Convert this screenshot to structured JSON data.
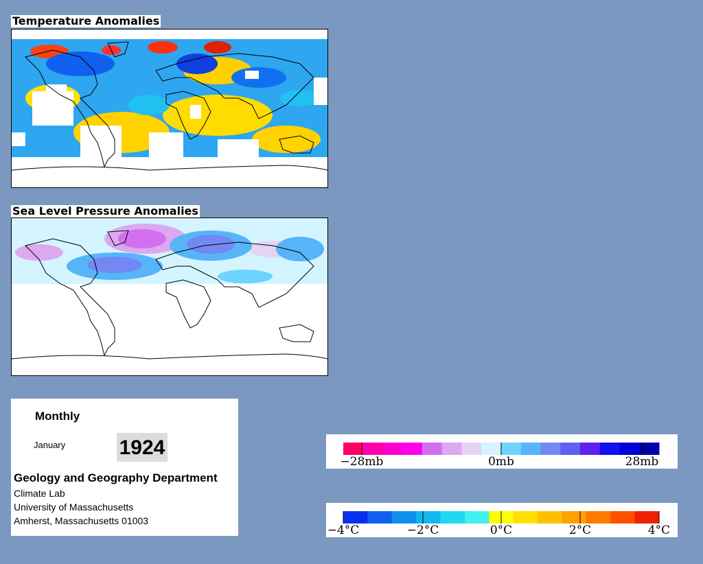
{
  "temperature_panel": {
    "title": "Temperature Anomalies"
  },
  "pressure_panel": {
    "title": "Sea Level Pressure Anomalies"
  },
  "info": {
    "period": "Monthly",
    "month": "January",
    "year": "1924",
    "department": "Geology and Geography Department",
    "address_lines": [
      "Climate Lab",
      "University of Massachusetts",
      "Amherst, Massachusetts 01003"
    ]
  },
  "pressure_legend": {
    "colors": [
      "#ff0066",
      "#ff00aa",
      "#ff00d0",
      "#ff00ee",
      "#d070f0",
      "#dca8f0",
      "#e4d4f4",
      "#d4f4ff",
      "#6cd4ff",
      "#58b4f8",
      "#7488f4",
      "#6060f0",
      "#6020f0",
      "#1010f0",
      "#0000d8",
      "#0000a8"
    ],
    "labels": [
      "−28mb",
      "0mb",
      "28mb"
    ]
  },
  "temperature_legend": {
    "colors": [
      "#0830f0",
      "#1060f0",
      "#1090f0",
      "#10b8f0",
      "#20d8f0",
      "#40f0f0",
      "#ffff00",
      "#ffe000",
      "#ffc000",
      "#ffa000",
      "#ff7800",
      "#ff5000",
      "#f02000"
    ],
    "labels": [
      "−4°C",
      "−2°C",
      "0°C",
      "2°C",
      "4°C"
    ]
  }
}
